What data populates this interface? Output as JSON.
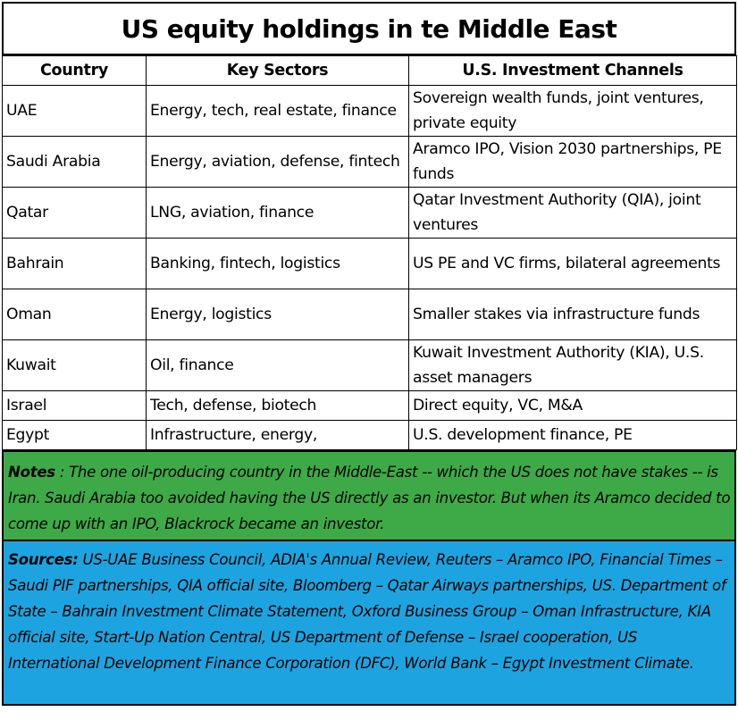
{
  "title": "US equity holdings in te Middle East",
  "columns": [
    "Country",
    "Key Sectors",
    "U.S. Investment Channels"
  ],
  "rows": [
    {
      "country": "UAE",
      "sectors": "Energy, tech, real estate, finance",
      "channels": "Sovereign wealth funds, joint ventures, private equity"
    },
    {
      "country": "Saudi Arabia",
      "sectors": "Energy, aviation, defense, fintech",
      "channels": "Aramco IPO, Vision 2030 partnerships, PE funds"
    },
    {
      "country": "Qatar",
      "sectors": "LNG, aviation, finance",
      "channels": "Qatar Investment Authority (QIA), joint ventures"
    },
    {
      "country": "Bahrain",
      "sectors": "Banking, fintech, logistics",
      "channels": "US PE and VC firms, bilateral agreements"
    },
    {
      "country": "Oman",
      "sectors": "Energy, logistics",
      "channels": "Smaller stakes via infrastructure funds"
    },
    {
      "country": "Kuwait",
      "sectors": "Oil, finance",
      "channels": "Kuwait Investment Authority (KIA), U.S. asset managers"
    },
    {
      "country": "Israel",
      "sectors": "Tech, defense, biotech",
      "channels": "Direct equity, VC, M&A"
    },
    {
      "country": "Egypt",
      "sectors": "Infrastructure, energy,",
      "channels": "U.S. development finance, PE"
    }
  ],
  "notes": {
    "label": "Notes",
    "text": " : The one oil-producing country in the Middle-East -- which the US does not have stakes  -- is Iran.  Saudi Arabia too avoided having the US directly as an investor.  But when its Aramco decided to come up with an IPO, Blackrock became an investor.",
    "color": "#3eaa47"
  },
  "sources": {
    "label": "Sources:",
    "text": "  US-UAE Business Council, ADIA's Annual Review, Reuters – Aramco IPO, Financial Times – Saudi PIF partnerships, QIA official site,  Bloomberg – Qatar Airways partnerships, US. Department of State – Bahrain Investment Climate Statement, Oxford Business Group – Oman Infrastructure, KIA official site, Start-Up Nation Central, US Department of Defense – Israel cooperation, US International Development Finance Corporation (DFC), World Bank – Egypt Investment Climate.",
    "color": "#1da4e0"
  }
}
